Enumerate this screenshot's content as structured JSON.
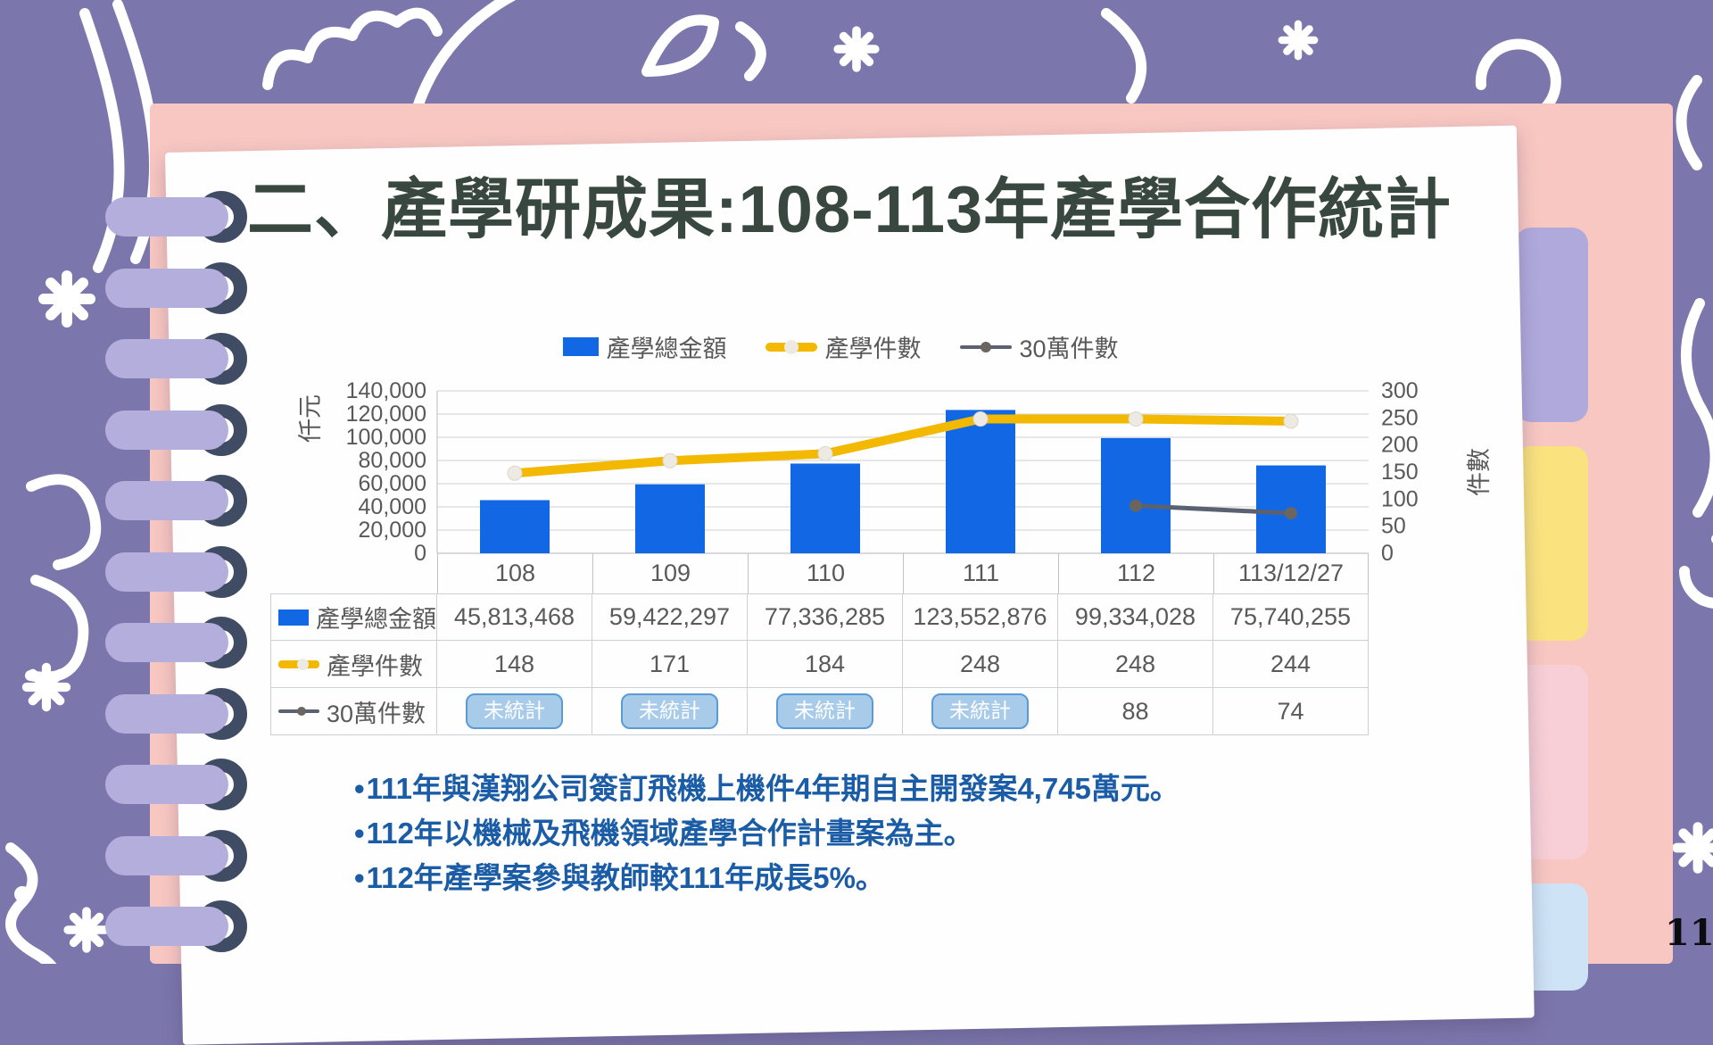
{
  "slide": {
    "title": "二、產學研成果:108-113年產學合作統計",
    "page_number": "11",
    "bullet_char": "•",
    "bullets": [
      "111年與漢翔公司簽訂飛機上機件4年期自主開發案4,745萬元。",
      "112年以機械及飛機領域產學合作計畫案為主。",
      "112年產學案參與教師較111年成長5%。"
    ]
  },
  "chart_data": {
    "type": "combo bar+line",
    "categories": [
      "108",
      "109",
      "110",
      "111",
      "112",
      "113/12/27"
    ],
    "series": [
      {
        "name": "產學總金額",
        "chart_type": "bar",
        "axis": "left",
        "color": "#1268E4",
        "values": [
          45813,
          59422,
          77336,
          123553,
          99334,
          75740
        ],
        "unit": "仟元"
      },
      {
        "name": "產學件數",
        "chart_type": "line",
        "axis": "right",
        "color": "#F3B800",
        "marker_color": "#EDEAE4",
        "values": [
          148,
          171,
          184,
          248,
          248,
          244
        ]
      },
      {
        "name": "30萬件數",
        "chart_type": "line",
        "axis": "right",
        "color": "#5A6170",
        "marker_color": "#6A655F",
        "values": [
          null,
          null,
          null,
          null,
          88,
          74
        ]
      }
    ],
    "left_axis": {
      "title": "仟元",
      "min": 0,
      "max": 140000,
      "step": 20000
    },
    "right_axis": {
      "title": "件數",
      "min": 0,
      "max": 300,
      "step": 50
    },
    "legend_position": "top",
    "grid": "horizontal"
  },
  "table": {
    "column_headers": [
      "108",
      "109",
      "110",
      "111",
      "112",
      "113/12/27"
    ],
    "rows": [
      {
        "label": "產學總金額",
        "key": "bar",
        "values": [
          "45,813,468",
          "59,422,297",
          "77,336,285",
          "123,552,876",
          "99,334,028",
          "75,740,255"
        ],
        "badge_flags": [
          false,
          false,
          false,
          false,
          false,
          false
        ]
      },
      {
        "label": "產學件數",
        "key": "line-yellow",
        "values": [
          "148",
          "171",
          "184",
          "248",
          "248",
          "244"
        ],
        "badge_flags": [
          false,
          false,
          false,
          false,
          false,
          false
        ]
      },
      {
        "label": "30萬件數",
        "key": "line-gray",
        "values": [
          "未統計",
          "未統計",
          "未統計",
          "未統計",
          "88",
          "74"
        ],
        "badge_flags": [
          true,
          true,
          true,
          true,
          false,
          false
        ]
      }
    ]
  },
  "colors": {
    "background": "#7B76AC",
    "pink_page": "#F8C7C2",
    "white_page": "#FEFEFE",
    "title_text": "#394741",
    "bullet_text": "#1B5CA6",
    "axis_text": "#595959",
    "bar_blue": "#1268E4",
    "line_yellow": "#F3B800",
    "line_gray": "#5A6170",
    "badge_fill": "#A9CBEA",
    "badge_border": "#5B9BD5",
    "coil_pill": "#B4AEDC",
    "coil_ring": "#3F4C64",
    "tab_colors": [
      "#B0A9DB",
      "#FAE37F",
      "#F8CFD6",
      "#CEE4F6"
    ]
  }
}
